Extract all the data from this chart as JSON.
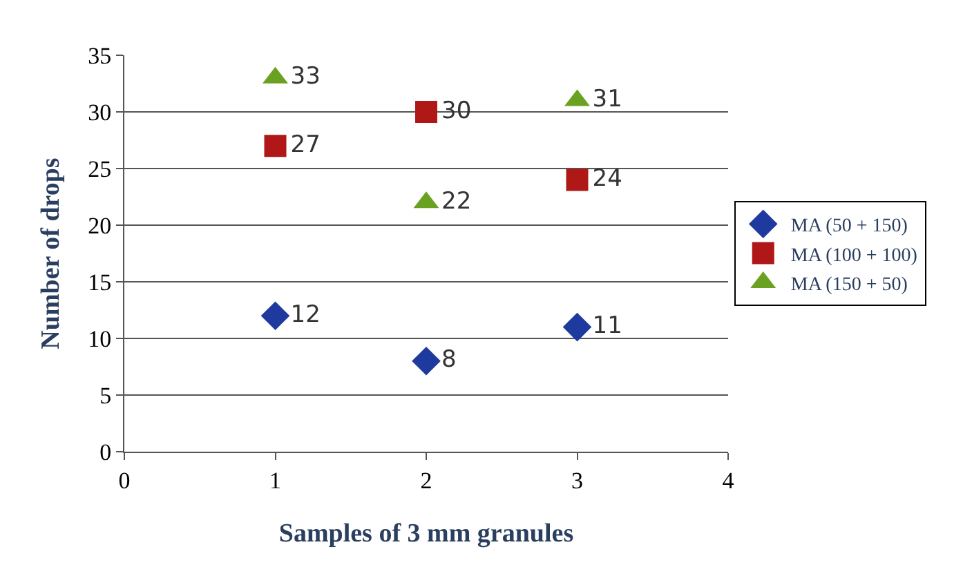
{
  "chart_data": {
    "type": "scatter",
    "xlabel": "Samples of 3 mm granules",
    "ylabel": "Number of drops",
    "x": [
      1,
      2,
      3
    ],
    "series": [
      {
        "name": "MA (50 + 150)",
        "color": "#1f3a9e",
        "marker": "diamond",
        "values": [
          12,
          8,
          11
        ]
      },
      {
        "name": "MA (100 + 100)",
        "color": "#b01818",
        "marker": "square",
        "values": [
          27,
          30,
          24
        ]
      },
      {
        "name": "MA (150 + 50)",
        "color": "#6aa121",
        "marker": "triangle",
        "values": [
          33,
          22,
          31
        ]
      }
    ],
    "xlim": [
      0,
      4
    ],
    "xticks": [
      0,
      1,
      2,
      3,
      4
    ],
    "ylim": [
      0,
      35
    ],
    "yticks": [
      0,
      5,
      10,
      15,
      20,
      25,
      30,
      35
    ],
    "grid": "y",
    "legend": "right",
    "data_labels": true
  }
}
